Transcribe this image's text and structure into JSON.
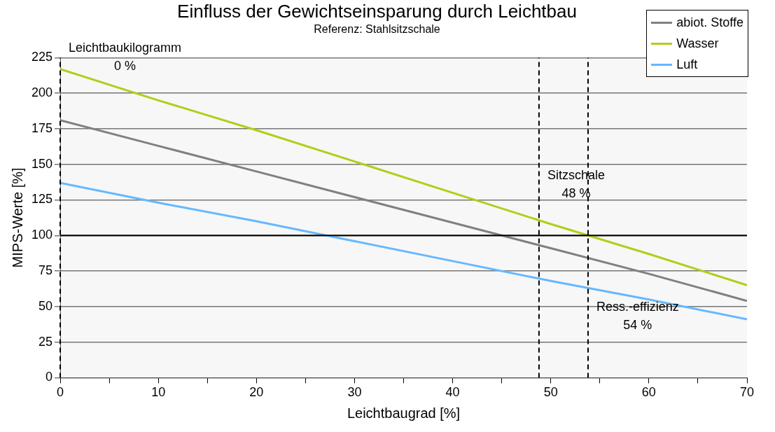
{
  "chart_data": {
    "type": "line",
    "title": "Einfluss der Gewichtseinsparung durch Leichtbau",
    "subtitle": "Referenz: Stahlsitzschale",
    "xlabel": "Leichtbaugrad [%]",
    "ylabel": "MIPS-Werte [%]",
    "x": [
      0,
      10,
      20,
      30,
      40,
      50,
      60,
      70
    ],
    "series": [
      {
        "name": "abiot. Stoffe",
        "color": "#808080",
        "values": [
          181,
          163,
          145,
          127,
          109,
          91,
          73,
          54
        ]
      },
      {
        "name": "Wasser",
        "color": "#b5cc18",
        "values": [
          217,
          195,
          174,
          152,
          130,
          108,
          87,
          65
        ]
      },
      {
        "name": "Luft",
        "color": "#66b8ff",
        "values": [
          137,
          123,
          110,
          96,
          82,
          68,
          55,
          41
        ]
      }
    ],
    "xlim": [
      0,
      70
    ],
    "xticks": [
      0,
      {
        "value": 5,
        "label": null
      },
      10,
      {
        "value": 15,
        "label": null
      },
      20,
      {
        "value": 25,
        "label": null
      },
      30,
      {
        "value": 35,
        "label": null
      },
      40,
      {
        "value": 45,
        "label": null
      },
      50,
      {
        "value": 55,
        "label": null
      },
      60,
      {
        "value": 65,
        "label": null
      },
      70
    ],
    "ylim": [
      0,
      225
    ],
    "yticks": [
      0,
      25,
      50,
      75,
      100,
      125,
      150,
      175,
      200,
      225
    ],
    "ref_lines": [
      {
        "axis": "y",
        "value": 100,
        "color": "#000000",
        "line_style": "solid"
      },
      {
        "axis": "x",
        "value": 0,
        "label": "Leichtbaukilogramm\n0 %",
        "color": "#000000",
        "line_style": "dashed"
      },
      {
        "axis": "x",
        "value": 48.8,
        "label": "Sitzschale\n48 %",
        "color": "#000000",
        "line_style": "dashed"
      },
      {
        "axis": "x",
        "value": 53.8,
        "label": "Ress.-effizienz\n54 %",
        "color": "#000000",
        "line_style": "dashed"
      }
    ],
    "grid": "y",
    "legend": "top right",
    "marker": "none",
    "line_style": "solid"
  }
}
